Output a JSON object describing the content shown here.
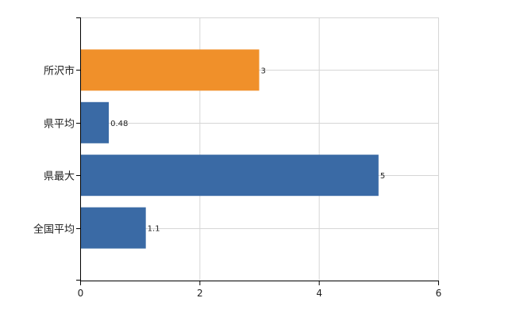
{
  "chart_data": {
    "type": "bar",
    "orientation": "horizontal",
    "categories": [
      "所沢市",
      "県平均",
      "県最大",
      "全国平均"
    ],
    "values": [
      3,
      0.48,
      5,
      1.1
    ],
    "value_labels": [
      "3",
      "0.48",
      "5",
      "1.1"
    ],
    "highlight_index": 0,
    "xlim": [
      0,
      6
    ],
    "xticks": [
      0,
      2,
      4,
      6
    ],
    "grid": true,
    "colors": {
      "default": "#3a6aa5",
      "highlight": "#f0902a",
      "grid": "#d6d6d6",
      "axis": "#000000"
    }
  }
}
